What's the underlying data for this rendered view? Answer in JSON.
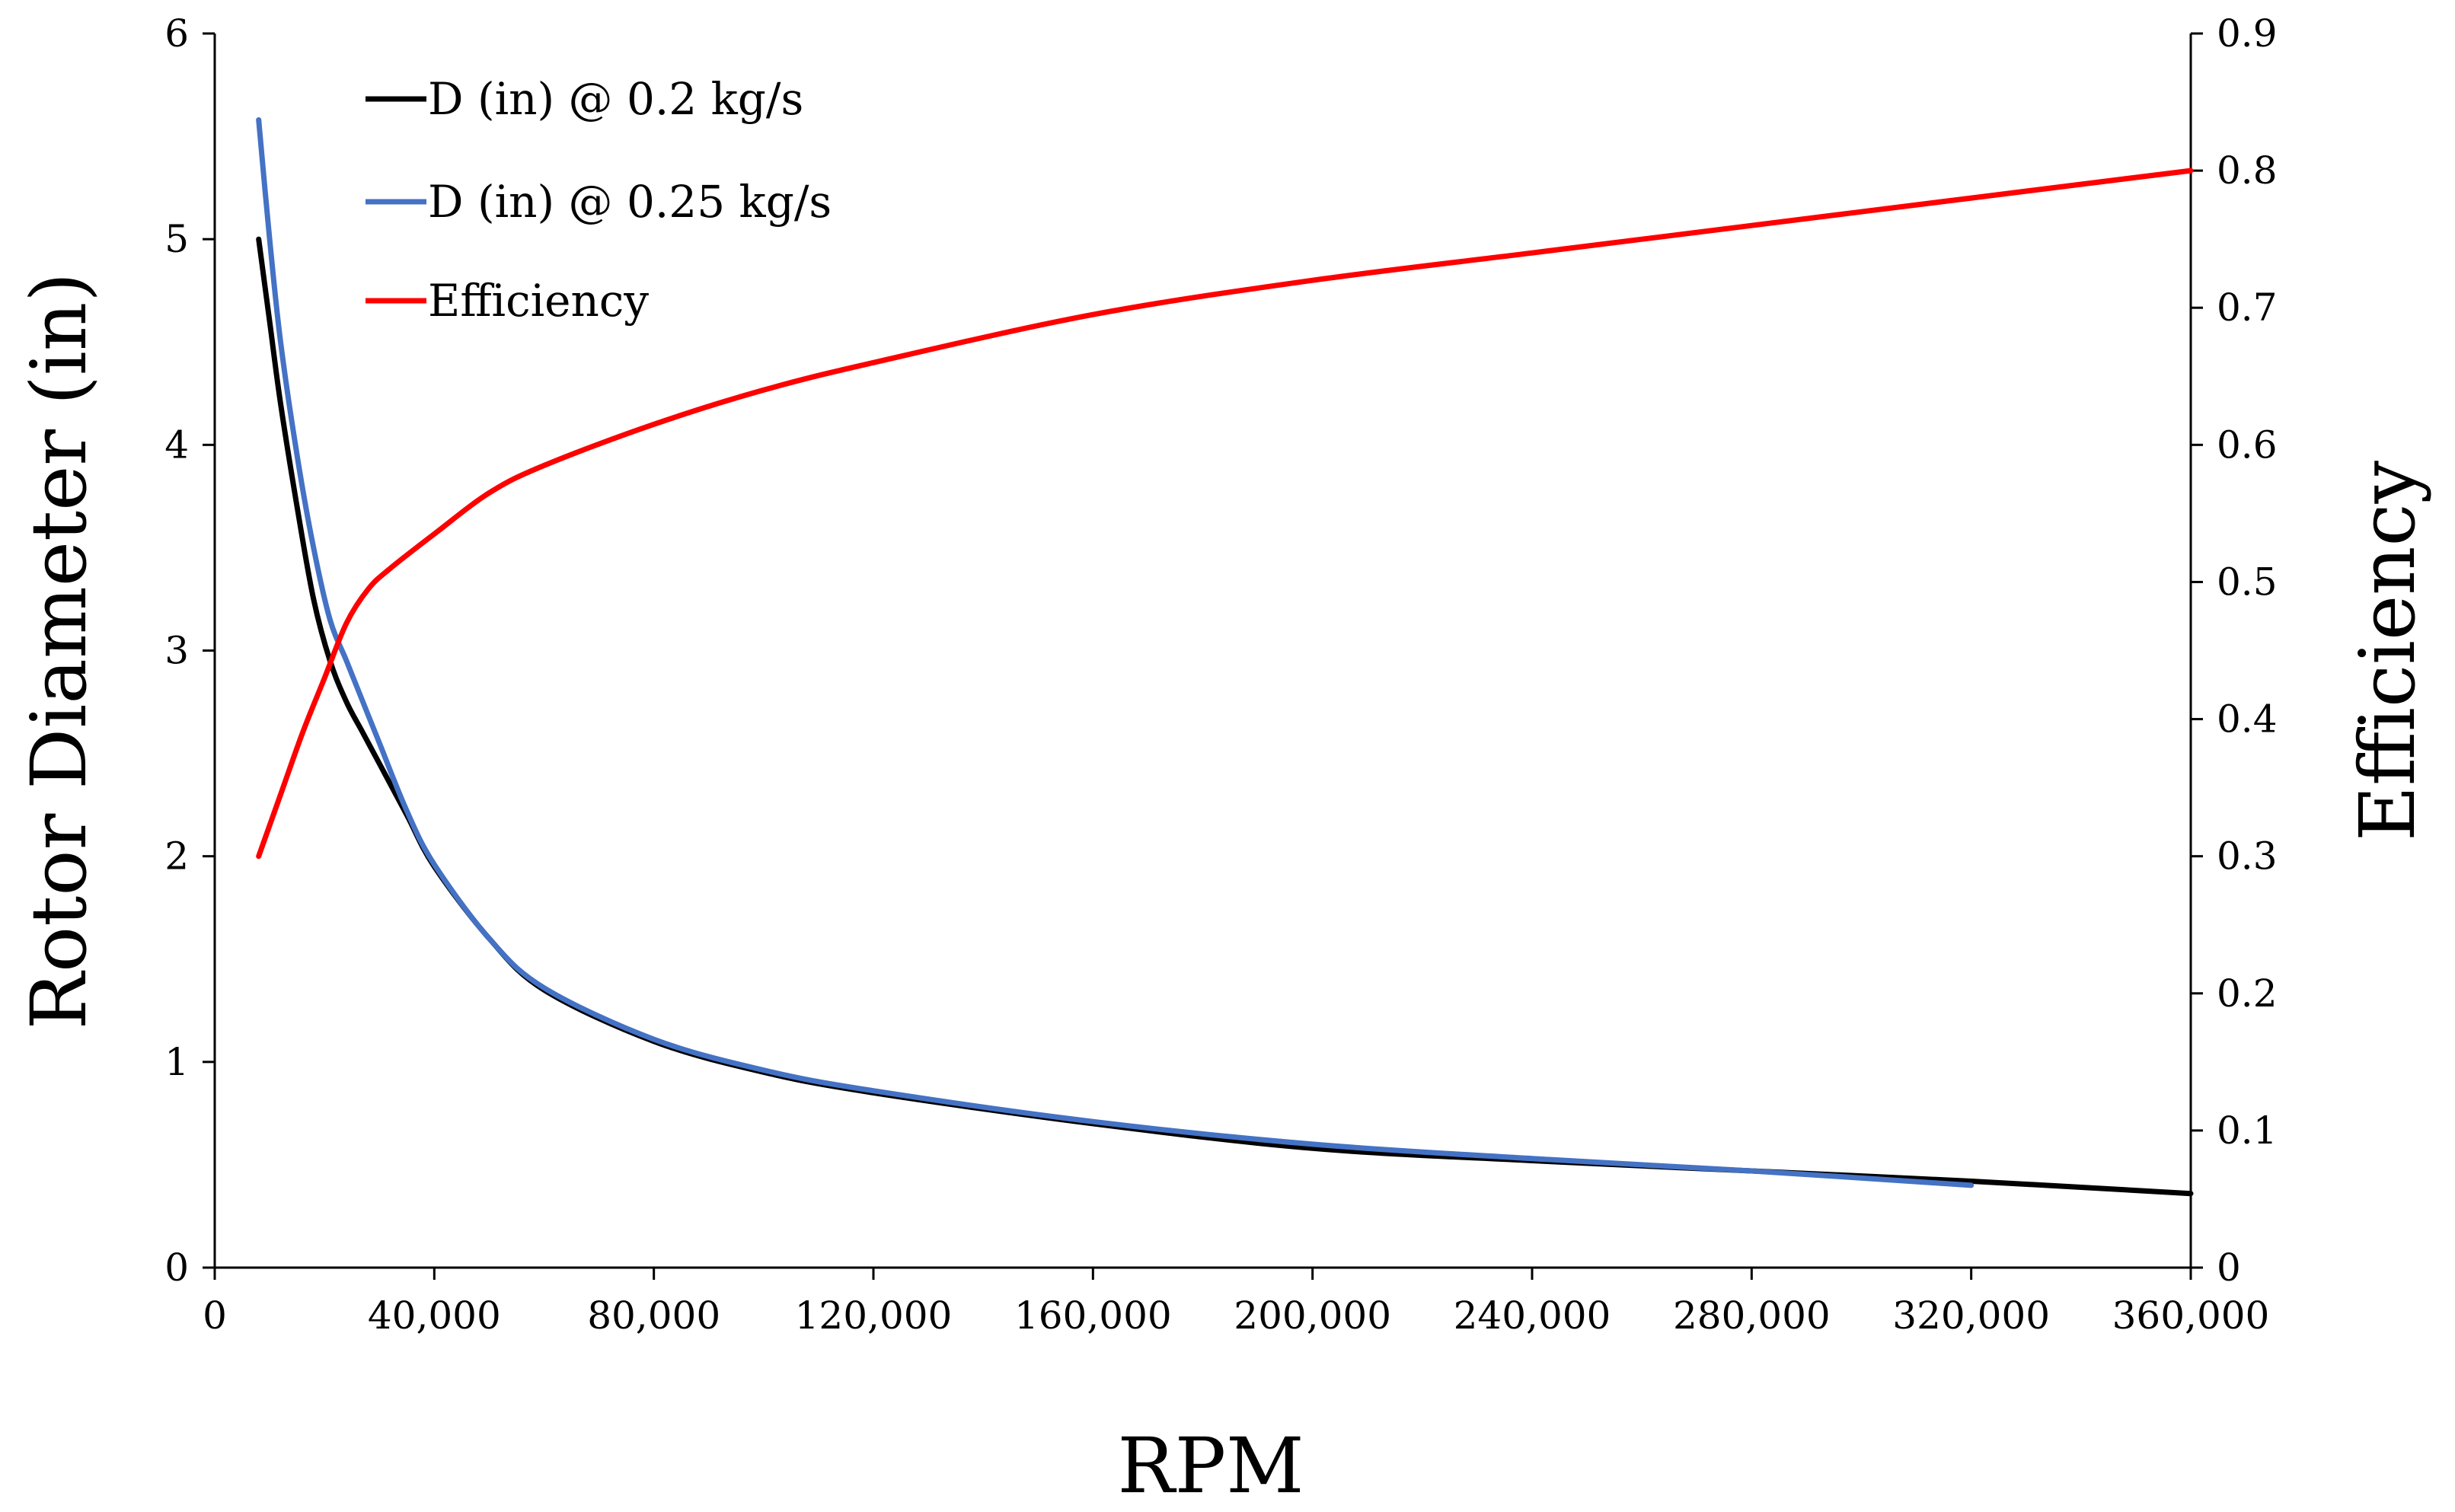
{
  "chart_data": {
    "type": "line",
    "title": "",
    "xlabel": "RPM",
    "ylabel": "Rotor Diameter (in)",
    "y2label": "Efficiency",
    "xlim": [
      0,
      360000
    ],
    "ylim": [
      0,
      6
    ],
    "y2lim": [
      0,
      0.9
    ],
    "x_ticks": [
      0,
      40000,
      80000,
      120000,
      160000,
      200000,
      240000,
      280000,
      320000,
      360000
    ],
    "x_tick_labels": [
      "0",
      "40,000",
      "80,000",
      "120,000",
      "160,000",
      "200,000",
      "240,000",
      "280,000",
      "320,000",
      "360,000"
    ],
    "y_ticks": [
      0,
      1,
      2,
      3,
      4,
      5,
      6
    ],
    "y_tick_labels": [
      "0",
      "1",
      "2",
      "3",
      "4",
      "5",
      "6"
    ],
    "y2_ticks": [
      0,
      0.1,
      0.2,
      0.3,
      0.4,
      0.5,
      0.6,
      0.7,
      0.8,
      0.9
    ],
    "y2_tick_labels": [
      "0",
      "0.1",
      "0.2",
      "0.3",
      "0.4",
      "0.5",
      "0.6",
      "0.7",
      "0.8",
      "0.9"
    ],
    "grid": false,
    "legend_position": "top-left",
    "series": [
      {
        "name": "D (in) @ 0.2 kg/s",
        "axis": "left",
        "color": "#000000",
        "x": [
          8000,
          10000,
          12000,
          15000,
          18000,
          21000,
          24000,
          27000,
          30000,
          35000,
          40000,
          50000,
          60000,
          80000,
          100000,
          120000,
          160000,
          200000,
          240000,
          280000,
          320000,
          360000
        ],
        "y": [
          5.0,
          4.6,
          4.2,
          3.7,
          3.25,
          2.95,
          2.75,
          2.6,
          2.45,
          2.2,
          1.95,
          1.6,
          1.35,
          1.1,
          0.95,
          0.85,
          0.7,
          0.58,
          0.52,
          0.47,
          0.42,
          0.36
        ]
      },
      {
        "name": "D (in) @ 0.25 kg/s",
        "axis": "left",
        "color": "#4472C4",
        "x": [
          8000,
          10000,
          12000,
          15000,
          18000,
          21000,
          24000,
          27000,
          30000,
          35000,
          40000,
          50000,
          60000,
          80000,
          100000,
          120000,
          160000,
          200000,
          240000,
          280000,
          320000
        ],
        "y": [
          5.58,
          5.0,
          4.5,
          3.95,
          3.5,
          3.15,
          2.95,
          2.75,
          2.55,
          2.22,
          1.96,
          1.6,
          1.36,
          1.11,
          0.96,
          0.86,
          0.71,
          0.6,
          0.53,
          0.47,
          0.4
        ]
      },
      {
        "name": "Efficiency",
        "axis": "right",
        "color": "#FF0000",
        "x": [
          8000,
          12000,
          16000,
          20000,
          24000,
          28000,
          32000,
          40000,
          50000,
          60000,
          80000,
          100000,
          120000,
          160000,
          200000,
          240000,
          280000,
          320000,
          360000
        ],
        "y": [
          0.3,
          0.345,
          0.39,
          0.43,
          0.47,
          0.495,
          0.51,
          0.535,
          0.565,
          0.585,
          0.615,
          0.64,
          0.66,
          0.695,
          0.72,
          0.74,
          0.76,
          0.78,
          0.8
        ]
      }
    ]
  }
}
